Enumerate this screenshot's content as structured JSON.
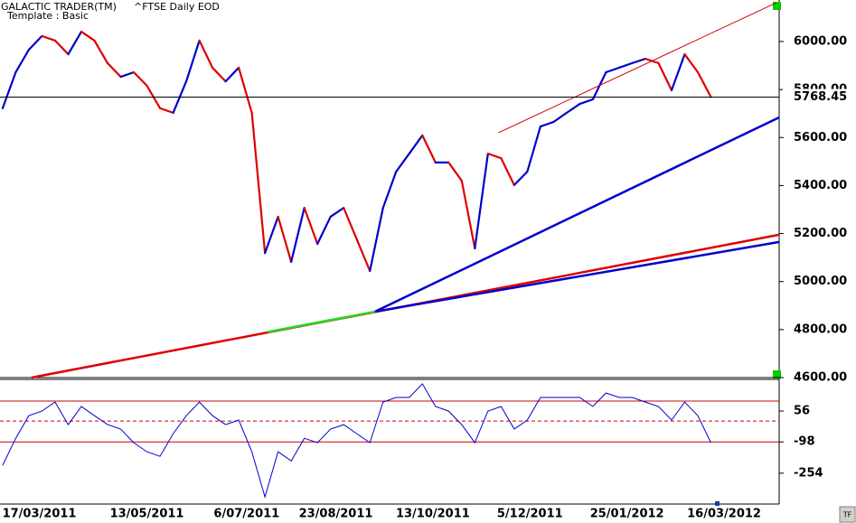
{
  "chart_data": [
    {
      "type": "line",
      "title": "GALACTIC TRADER(TM)",
      "subtitle": "^FTSE Daily EOD",
      "note": "Template : Basic",
      "x": [
        "25/02/2011",
        "04/03/2011",
        "11/03/2011",
        "18/03/2011",
        "25/03/2011",
        "01/04/2011",
        "08/04/2011",
        "15/04/2011",
        "22/04/2011",
        "29/04/2011",
        "06/05/2011",
        "13/05/2011",
        "20/05/2011",
        "27/05/2011",
        "03/06/2011",
        "10/06/2011",
        "17/06/2011",
        "24/06/2011",
        "01/07/2011",
        "08/07/2011",
        "15/07/2011",
        "22/07/2011",
        "29/07/2011",
        "05/08/2011",
        "12/08/2011",
        "19/08/2011",
        "26/08/2011",
        "02/09/2011",
        "09/09/2011",
        "16/09/2011",
        "23/09/2011",
        "30/09/2011",
        "07/10/2011",
        "14/10/2011",
        "21/10/2011",
        "28/10/2011",
        "04/11/2011",
        "11/11/2011",
        "18/11/2011",
        "25/11/2011",
        "02/12/2011",
        "09/12/2011",
        "16/12/2011",
        "23/12/2011",
        "30/12/2011",
        "06/01/2012",
        "13/01/2012",
        "20/01/2012",
        "27/01/2012",
        "03/02/2012",
        "10/02/2012",
        "17/02/2012",
        "24/02/2012",
        "02/03/2012",
        "09/03/2012"
      ],
      "values": [
        5722,
        5872,
        5966,
        6023,
        6004,
        5947,
        6041,
        6004,
        5910,
        5853,
        5872,
        5816,
        5722,
        5703,
        5834,
        6004,
        5891,
        5834,
        5891,
        5703,
        5119,
        5270,
        5082,
        5307,
        5157,
        5270,
        5307,
        5176,
        5044,
        5307,
        5458,
        5533,
        5609,
        5496,
        5496,
        5420,
        5138,
        5533,
        5514,
        5402,
        5458,
        5646,
        5665,
        5703,
        5740,
        5759,
        5872,
        5891,
        5910,
        5928,
        5910,
        5797,
        5947,
        5872,
        5768.45
      ],
      "up_color": "#0000cc",
      "down_color": "#dd0000",
      "xlim": [
        "24/02/2011",
        "16/04/2012"
      ],
      "ylim": [
        4600,
        6173
      ],
      "yticks": [
        {
          "value": 6000,
          "label": "6000.00"
        },
        {
          "value": 5800,
          "label": "5800.00"
        },
        {
          "value": 5600,
          "label": "5600.00"
        },
        {
          "value": 5400,
          "label": "5400.00"
        },
        {
          "value": 5200,
          "label": "5200.00"
        },
        {
          "value": 5000,
          "label": "5000.00"
        },
        {
          "value": 4800,
          "label": "4800.00"
        },
        {
          "value": 4600,
          "label": "4600.00"
        }
      ],
      "last_value": 5768.45,
      "trendlines": [
        {
          "color": "#dd0000",
          "from": {
            "x": "14/03/2011",
            "y": 4600
          },
          "to": {
            "x": "16/04/2012",
            "y": 5195
          }
        },
        {
          "color": "#22dd22",
          "from": {
            "x": "18/07/2011",
            "y": 4790
          },
          "to": {
            "x": "13/09/2011",
            "y": 4875
          }
        },
        {
          "color": "#0000cc",
          "from": {
            "x": "13/09/2011",
            "y": 4875
          },
          "to": {
            "x": "16/04/2012",
            "y": 5165
          }
        },
        {
          "color": "#0000cc",
          "from": {
            "x": "13/09/2011",
            "y": 4875
          },
          "to": {
            "x": "16/04/2012",
            "y": 5684
          }
        },
        {
          "color": "#cc0000",
          "from": {
            "x": "17/11/2011",
            "y": 5620
          },
          "to": {
            "x": "13/04/2012",
            "y": 6162
          }
        }
      ]
    },
    {
      "type": "line",
      "x": [
        "25/02/2011",
        "04/03/2011",
        "11/03/2011",
        "18/03/2011",
        "25/03/2011",
        "01/04/2011",
        "08/04/2011",
        "15/04/2011",
        "22/04/2011",
        "29/04/2011",
        "06/05/2011",
        "13/05/2011",
        "20/05/2011",
        "27/05/2011",
        "03/06/2011",
        "10/06/2011",
        "17/06/2011",
        "24/06/2011",
        "01/07/2011",
        "08/07/2011",
        "15/07/2011",
        "22/07/2011",
        "29/07/2011",
        "05/08/2011",
        "12/08/2011",
        "19/08/2011",
        "26/08/2011",
        "02/09/2011",
        "09/09/2011",
        "16/09/2011",
        "23/09/2011",
        "30/09/2011",
        "07/10/2011",
        "14/10/2011",
        "21/10/2011",
        "28/10/2011",
        "04/11/2011",
        "11/11/2011",
        "18/11/2011",
        "25/11/2011",
        "02/12/2011",
        "09/12/2011",
        "16/12/2011",
        "23/12/2011",
        "30/12/2011",
        "06/01/2012",
        "13/01/2012",
        "20/01/2012",
        "27/01/2012",
        "03/02/2012",
        "10/02/2012",
        "17/02/2012",
        "24/02/2012",
        "02/03/2012",
        "09/03/2012"
      ],
      "values": [
        -215,
        -80,
        33,
        56,
        101,
        -12,
        79,
        33,
        -12,
        -34,
        -102,
        -147,
        -170,
        -57,
        33,
        101,
        33,
        -12,
        11,
        -147,
        -373,
        -147,
        -193,
        -80,
        -102,
        -34,
        -12,
        -57,
        -102,
        101,
        124,
        124,
        192,
        79,
        56,
        -12,
        -102,
        56,
        79,
        -34,
        11,
        124,
        124,
        124,
        124,
        79,
        146,
        124,
        124,
        101,
        79,
        11,
        101,
        33,
        -102
      ],
      "color": "#0000cc",
      "xlim": [
        "24/02/2011",
        "16/04/2012"
      ],
      "ylim": [
        -408,
        214
      ],
      "yticks": [
        56,
        -98,
        -254
      ],
      "reference_lines": [
        {
          "value": 106,
          "color": "#cc0000",
          "dashed": false
        },
        {
          "value": 6,
          "color": "#cc0000",
          "dashed": true
        },
        {
          "value": -98,
          "color": "#cc0000",
          "dashed": false
        }
      ],
      "xticks": [
        "17/03/2011",
        "13/05/2011",
        "6/07/2011",
        "23/08/2011",
        "13/10/2011",
        "5/12/2011",
        "25/01/2012",
        "16/03/2012"
      ]
    }
  ],
  "corner_button": "TF"
}
